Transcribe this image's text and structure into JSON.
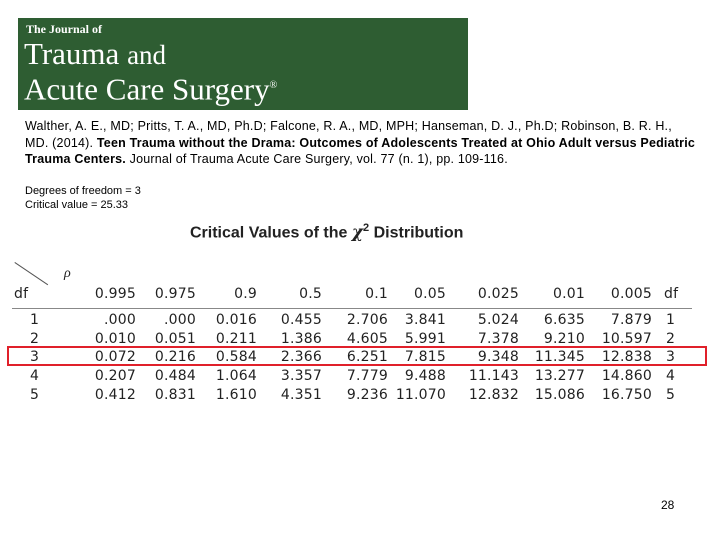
{
  "banner": {
    "top_line": "The Journal of",
    "line1_main": "Trauma",
    "line1_and": "and",
    "line2": "Acute Care Surgery",
    "registered": "®",
    "colors": {
      "background": "#2e5d32",
      "text": "#ffffff"
    }
  },
  "citation": {
    "authors": "Walther, A. E., MD; Pritts, T. A., MD, Ph.D; Falcone, R. A., MD, MPH; Hanseman, D. J., Ph.D; Robinson, B. R. H., MD. (2014).",
    "title": "Teen Trauma without the Drama: Outcomes of Adolescents Treated at Ohio Adult versus Pediatric Trauma Centers.",
    "source": "Journal of Trauma Acute Care Surgery, vol. 77 (n. 1), pp. 109-116."
  },
  "stats": {
    "degrees_of_freedom": "Degrees of freedom  = 3",
    "critical_value": "Critical value = 25.33"
  },
  "table": {
    "title_prefix": "Critical Values of the",
    "title_symbol": "χ",
    "title_power": "2",
    "title_suffix": "Distribution",
    "p_label": "ρ",
    "df_label": "df",
    "df_label_right": "df",
    "columns": [
      "0.995",
      "0.975",
      "0.9",
      "0.5",
      "0.1",
      "0.05",
      "0.025",
      "0.01",
      "0.005"
    ],
    "rows": [
      {
        "df": "1",
        "values": [
          ".000",
          ".000",
          "0.016",
          "0.455",
          "2.706",
          "3.841",
          "5.024",
          "6.635",
          "7.879"
        ],
        "df_right": "1"
      },
      {
        "df": "2",
        "values": [
          "0.010",
          "0.051",
          "0.211",
          "1.386",
          "4.605",
          "5.991",
          "7.378",
          "9.210",
          "10.597"
        ],
        "df_right": "2"
      },
      {
        "df": "3",
        "values": [
          "0.072",
          "0.216",
          "0.584",
          "2.366",
          "6.251",
          "7.815",
          "9.348",
          "11.345",
          "12.838"
        ],
        "df_right": "3"
      },
      {
        "df": "4",
        "values": [
          "0.207",
          "0.484",
          "1.064",
          "3.357",
          "7.779",
          "9.488",
          "11.143",
          "13.277",
          "14.860"
        ],
        "df_right": "4"
      },
      {
        "df": "5",
        "values": [
          "0.412",
          "0.831",
          "1.610",
          "4.351",
          "9.236",
          "11.070",
          "12.832",
          "15.086",
          "16.750"
        ],
        "df_right": "5"
      }
    ],
    "highlighted_row_df": "3",
    "highlight_color": "#e0202a"
  },
  "page_number": "28"
}
